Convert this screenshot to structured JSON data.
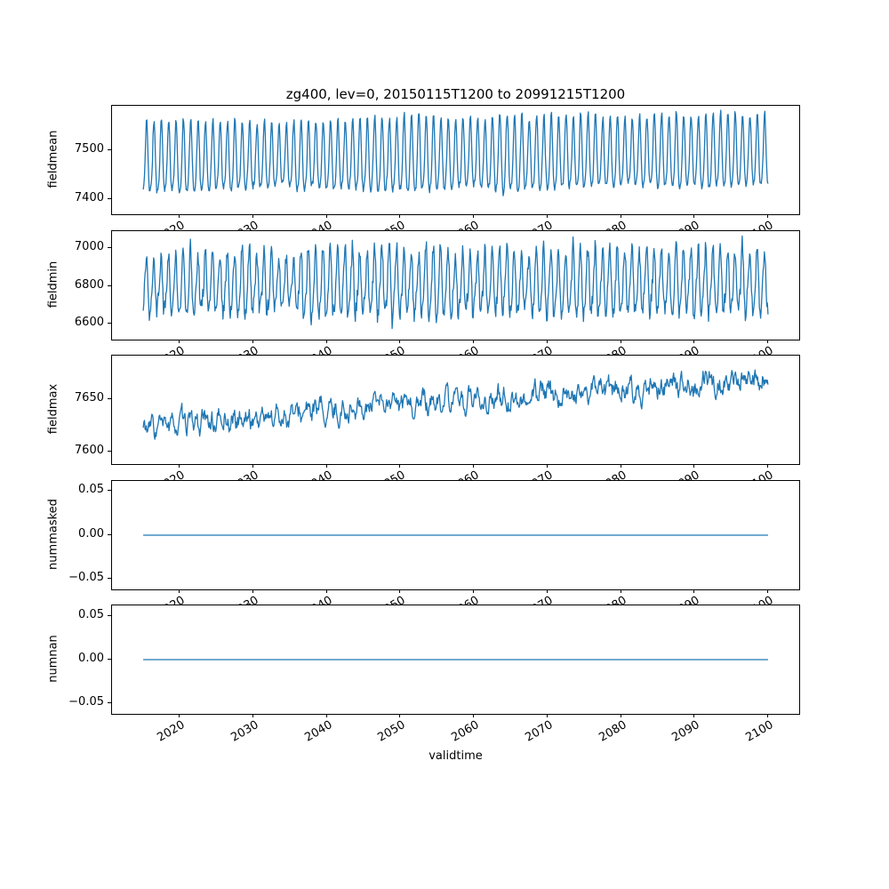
{
  "title": "zg400, lev=0, 20150115T1200 to 20991215T1200",
  "xlabel": "validtime",
  "line_color": "#1f77b4",
  "xlim": [
    2010.8,
    2104.2
  ],
  "x_ticks": [
    2020,
    2030,
    2040,
    2050,
    2060,
    2070,
    2080,
    2090,
    2100
  ],
  "x_tick_labels": [
    "2020",
    "2030",
    "2040",
    "2050",
    "2060",
    "2070",
    "2080",
    "2090",
    "2100"
  ],
  "x_model": {
    "x_start": 2015.042,
    "x_end": 2099.958,
    "points_per_year": 12
  },
  "chart_data": [
    {
      "type": "line",
      "ylabel": "fieldmean",
      "yticks": [
        7400,
        7500
      ],
      "ytick_labels": [
        "7400",
        "7500"
      ],
      "ylim": [
        7370,
        7590
      ],
      "value_range": [
        7380,
        7585
      ],
      "pattern": "annual seasonal oscillation, slight upward trend",
      "model": {
        "kind": "seasonal",
        "base": 7476,
        "trend": 14,
        "amp": 72,
        "amp_var": 0.18,
        "h2": 14,
        "phase": 0.25,
        "noise": 6,
        "clip": [
          7374,
          7586
        ],
        "seed": 11
      }
    },
    {
      "type": "line",
      "ylabel": "fieldmin",
      "yticks": [
        6600,
        6800,
        7000
      ],
      "ytick_labels": [
        "6600",
        "6800",
        "7000"
      ],
      "ylim": [
        6515,
        7095
      ],
      "value_range": [
        6540,
        7075
      ],
      "pattern": "noisy annual oscillation",
      "model": {
        "kind": "seasonal",
        "base": 6800,
        "trend": 15,
        "amp": 165,
        "amp_var": 0.3,
        "h2": 35,
        "phase": 0.2,
        "noise": 45,
        "clip": [
          6530,
          7080
        ],
        "seed": 22
      }
    },
    {
      "type": "line",
      "ylabel": "fieldmax",
      "yticks": [
        7600,
        7650
      ],
      "ytick_labels": [
        "7600",
        "7650"
      ],
      "ylim": [
        7588,
        7692
      ],
      "value_range": [
        7595,
        7690
      ],
      "pattern": "noisy series rising from ~7620 to ~7670",
      "model": {
        "kind": "walk",
        "base": 7621,
        "trend": 48,
        "persist": 0.72,
        "step": 7.5,
        "seasonal": 4,
        "clip": [
          7593,
          7689
        ],
        "seed": 33
      }
    },
    {
      "type": "line",
      "ylabel": "nummasked",
      "yticks": [
        -0.05,
        0.0,
        0.05
      ],
      "ytick_labels": [
        "−0.05",
        "0.00",
        "0.05"
      ],
      "ylim": [
        -0.062,
        0.062
      ],
      "value_range": [
        0,
        0
      ],
      "pattern": "constant zero",
      "model": {
        "kind": "flat",
        "value": 0,
        "seed": 44
      }
    },
    {
      "type": "line",
      "ylabel": "numnan",
      "yticks": [
        -0.05,
        0.0,
        0.05
      ],
      "ytick_labels": [
        "−0.05",
        "0.00",
        "0.05"
      ],
      "ylim": [
        -0.062,
        0.062
      ],
      "value_range": [
        0,
        0
      ],
      "pattern": "constant zero",
      "model": {
        "kind": "flat",
        "value": 0,
        "seed": 55
      }
    }
  ]
}
